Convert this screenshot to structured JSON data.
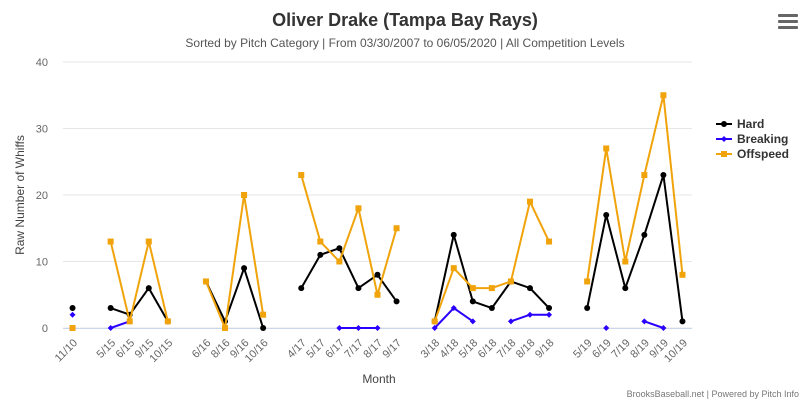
{
  "chart": {
    "title": "Oliver Drake (Tampa Bay Rays)",
    "subtitle": "Sorted by Pitch Category | From 03/30/2007 to 06/05/2020 | All Competition Levels",
    "credit": "BrooksBaseball.net | Powered by Pitch Info",
    "menu_icon": "hamburger-menu-icon"
  },
  "chart_data": {
    "type": "line",
    "title": "Oliver Drake (Tampa Bay Rays)",
    "subtitle": "Sorted by Pitch Category | From 03/30/2007 to 06/05/2020 | All Competition Levels",
    "xlabel": "Month",
    "ylabel": "Raw Number of Whiffs",
    "ylim": [
      0,
      40
    ],
    "yticks": [
      0,
      10,
      20,
      30,
      40
    ],
    "grid": true,
    "legend_position": "right",
    "categories": [
      "11/10",
      null,
      "5/15",
      "6/15",
      "9/15",
      "10/15",
      null,
      "6/16",
      "8/16",
      "9/16",
      "10/16",
      null,
      "4/17",
      "5/17",
      "6/17",
      "7/17",
      "8/17",
      "9/17",
      null,
      "3/18",
      "4/18",
      "5/18",
      "6/18",
      "7/18",
      "8/18",
      "9/18",
      null,
      "5/19",
      "6/19",
      "7/19",
      "8/19",
      "9/19",
      "10/19"
    ],
    "series": [
      {
        "name": "Hard",
        "color": "#000000",
        "marker": "circle",
        "values": [
          3,
          null,
          3,
          2,
          6,
          1,
          null,
          7,
          1,
          9,
          0,
          null,
          6,
          11,
          12,
          6,
          8,
          4,
          null,
          1,
          14,
          4,
          3,
          7,
          6,
          3,
          null,
          3,
          17,
          6,
          14,
          23,
          1
        ]
      },
      {
        "name": "Breaking",
        "color": "#2b00ff",
        "marker": "diamond",
        "values": [
          2,
          null,
          0,
          1,
          null,
          null,
          null,
          null,
          null,
          null,
          null,
          null,
          null,
          null,
          0,
          0,
          0,
          null,
          null,
          0,
          3,
          1,
          null,
          1,
          2,
          2,
          null,
          null,
          0,
          null,
          1,
          0,
          null
        ]
      },
      {
        "name": "Offspeed",
        "color": "#f0a30a",
        "marker": "square",
        "values": [
          0,
          null,
          13,
          1,
          13,
          1,
          null,
          7,
          0,
          20,
          2,
          null,
          23,
          13,
          10,
          18,
          5,
          15,
          null,
          1,
          9,
          6,
          6,
          7,
          19,
          13,
          null,
          7,
          27,
          10,
          23,
          35,
          8
        ]
      }
    ]
  }
}
